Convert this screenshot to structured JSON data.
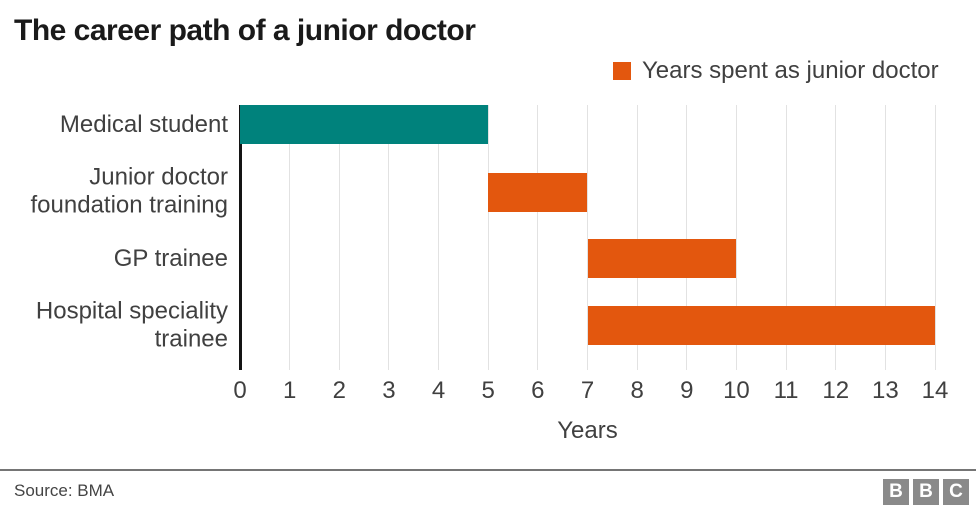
{
  "title": "The career path of a junior doctor",
  "legend": {
    "label": "Years spent as junior doctor",
    "swatch_color": "#e3570e"
  },
  "chart_data": {
    "type": "bar",
    "orientation": "horizontal",
    "title": "The career path of a junior doctor",
    "xlabel": "Years",
    "xlim": [
      0,
      14
    ],
    "xticks": [
      0,
      1,
      2,
      3,
      4,
      5,
      6,
      7,
      8,
      9,
      10,
      11,
      12,
      13,
      14
    ],
    "grid": "vertical",
    "legend_position": "top-right",
    "categories": [
      "Medical student",
      "Junior doctor foundation training",
      "GP trainee",
      "Hospital speciality trainee"
    ],
    "bars": [
      {
        "label": "Medical student",
        "start": 0,
        "end": 5,
        "color": "#00827c"
      },
      {
        "label": "Junior doctor foundation training",
        "start": 5,
        "end": 7,
        "color": "#e3570e"
      },
      {
        "label": "GP trainee",
        "start": 7,
        "end": 10,
        "color": "#e3570e"
      },
      {
        "label": "Hospital speciality trainee",
        "start": 7,
        "end": 14,
        "color": "#e3570e"
      }
    ]
  },
  "footer": {
    "source": "Source: BMA",
    "logo_letters": [
      "B",
      "B",
      "C"
    ]
  },
  "colors": {
    "teal": "#00827c",
    "orange": "#e3570e",
    "grid": "#e2e2e2",
    "axis": "#141414",
    "text": "#404040",
    "title_text": "#1a1a1a",
    "logo_gray": "#8a8a8a"
  }
}
